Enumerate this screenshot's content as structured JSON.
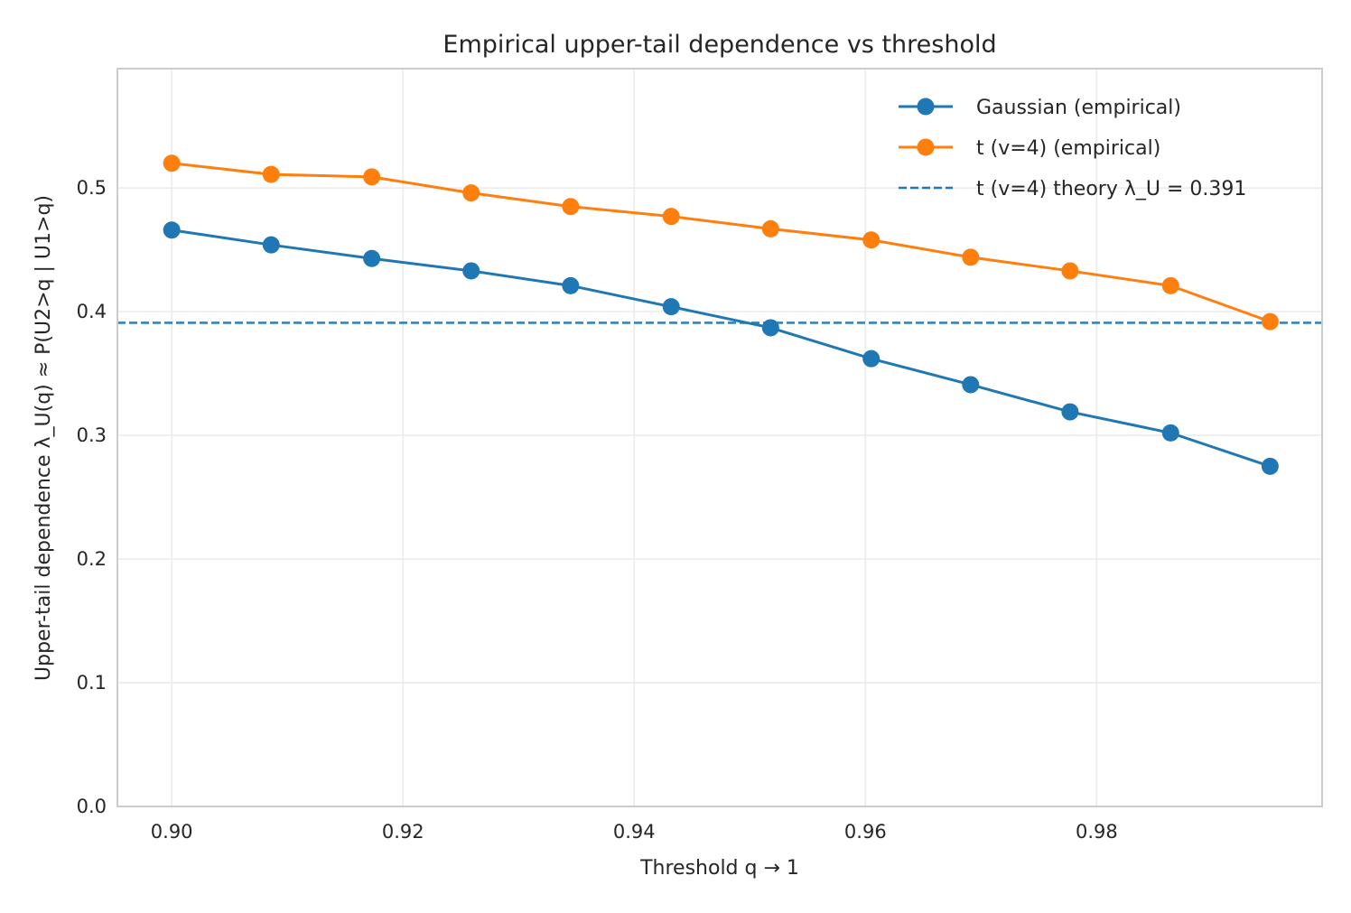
{
  "chart_data": {
    "type": "line",
    "title": "Empirical upper-tail dependence vs threshold",
    "xlabel": "Threshold q → 1",
    "ylabel": "Upper-tail dependence λ_U(q) ≈ P(U2>q | U1>q)",
    "xlim": [
      0.8953,
      0.9995
    ],
    "ylim": [
      0.0,
      0.5965
    ],
    "x_ticks": [
      0.9,
      0.92,
      0.94,
      0.96,
      0.98
    ],
    "x_tick_labels": [
      "0.90",
      "0.92",
      "0.94",
      "0.96",
      "0.98"
    ],
    "y_ticks": [
      0.0,
      0.1,
      0.2,
      0.3,
      0.4,
      0.5
    ],
    "y_tick_labels": [
      "0.0",
      "0.1",
      "0.2",
      "0.3",
      "0.4",
      "0.5"
    ],
    "grid": true,
    "legend_position": "top-right",
    "x": [
      0.9,
      0.9086,
      0.9173,
      0.9259,
      0.9345,
      0.9432,
      0.9518,
      0.9605,
      0.9691,
      0.9777,
      0.9864,
      0.995
    ],
    "series": [
      {
        "name": "Gaussian (empirical)",
        "color": "#1f77b4",
        "marker": "circle",
        "values": [
          0.466,
          0.454,
          0.443,
          0.433,
          0.421,
          0.404,
          0.387,
          0.362,
          0.341,
          0.319,
          0.302,
          0.275
        ]
      },
      {
        "name": "t (v=4) (empirical)",
        "color": "#ff7f0e",
        "marker": "circle",
        "values": [
          0.52,
          0.511,
          0.509,
          0.496,
          0.485,
          0.477,
          0.467,
          0.458,
          0.444,
          0.433,
          0.421,
          0.392
        ]
      }
    ],
    "reference_lines": [
      {
        "name": "t (v=4) theory λ_U = 0.391",
        "orientation": "horizontal",
        "value": 0.391,
        "color": "#1f77b4",
        "style": "dashed"
      }
    ]
  }
}
